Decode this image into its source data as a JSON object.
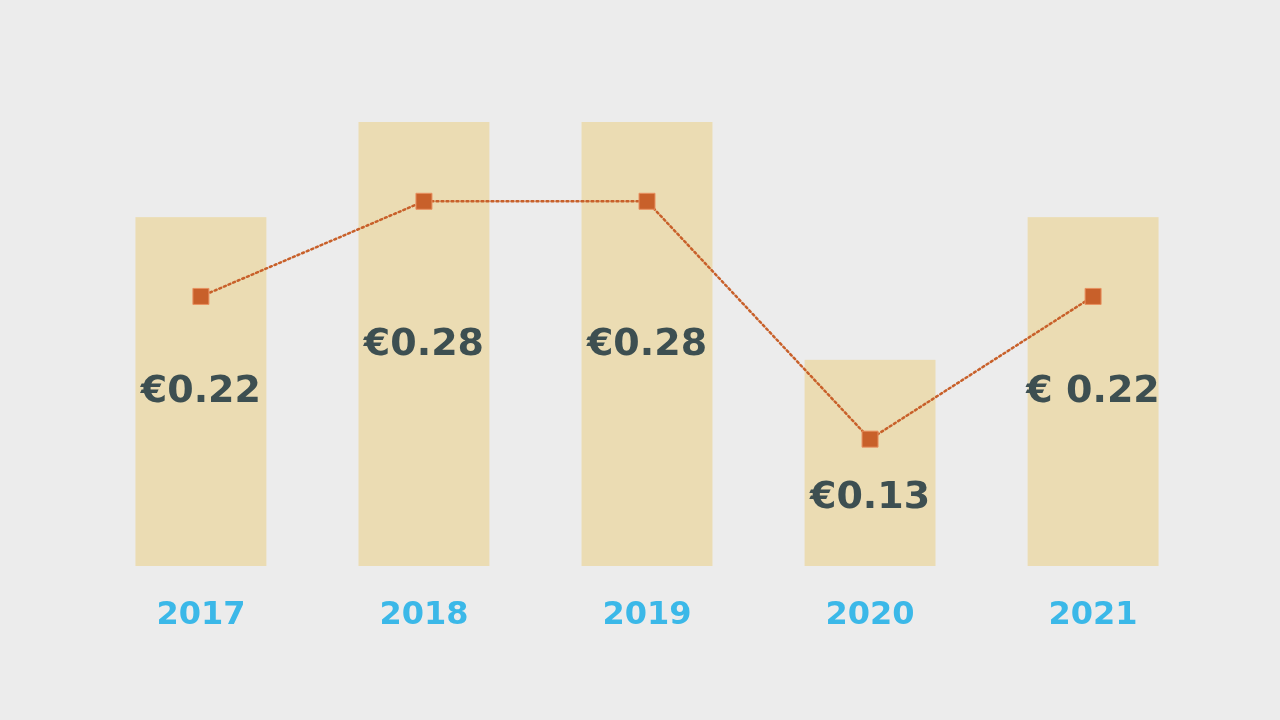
{
  "chart_data": {
    "type": "bar",
    "categories": [
      "2017",
      "2018",
      "2019",
      "2020",
      "2021"
    ],
    "series": [
      {
        "color": "#ebdcb3",
        "values": [
          0.22,
          0.28,
          0.28,
          0.13,
          0.22
        ],
        "value_labels": [
          "€0.22",
          "€0.28",
          "€0.28",
          "€0.13",
          "€ 0.22"
        ]
      },
      {
        "type": "line",
        "color": "#c8602a",
        "values": [
          0.17,
          0.23,
          0.23,
          0.08,
          0.17
        ],
        "marker": "square",
        "line_style": "dotted"
      }
    ],
    "tick_labels": "x"
  }
}
